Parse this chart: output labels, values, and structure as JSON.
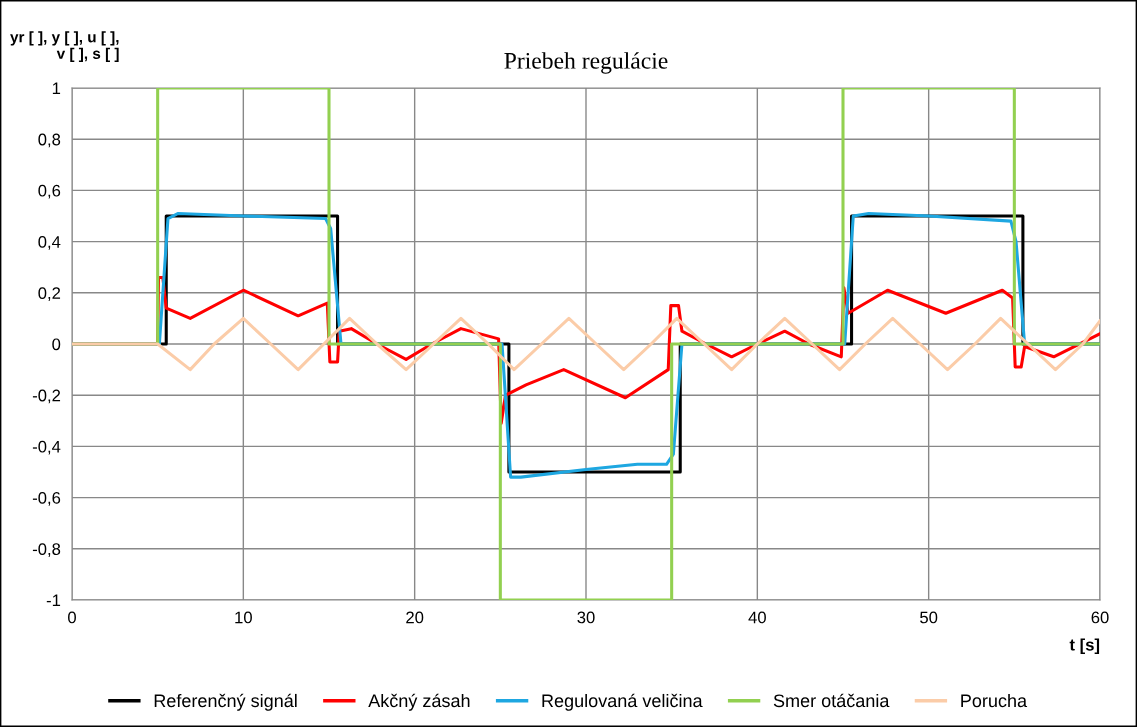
{
  "chart_data": {
    "type": "line",
    "title": "Priebeh regulácie",
    "xlabel": "t [s]",
    "ylabel": "yr [ ], y [ ], u [ ],\nv [ ], s [ ]",
    "xlim": [
      0,
      60
    ],
    "xticks": [
      0,
      10,
      20,
      30,
      40,
      50,
      60
    ],
    "ylim": [
      -1,
      1
    ],
    "yticks": [
      {
        "value": -1,
        "label": "-1"
      },
      {
        "value": -0.8,
        "label": "-0,8"
      },
      {
        "value": -0.6,
        "label": "-0,6"
      },
      {
        "value": -0.4,
        "label": "-0,4"
      },
      {
        "value": -0.2,
        "label": "-0,2"
      },
      {
        "value": 0,
        "label": "0"
      },
      {
        "value": 0.2,
        "label": "0,2"
      },
      {
        "value": 0.4,
        "label": "0,4"
      },
      {
        "value": 0.6,
        "label": "0,6"
      },
      {
        "value": 0.8,
        "label": "0,8"
      },
      {
        "value": 1,
        "label": "1"
      }
    ],
    "grid": true,
    "legend": "bottom",
    "line_style": "solid",
    "marker": "none",
    "series": [
      {
        "name": "Referenčný signál",
        "color": "#000000",
        "x": [
          0,
          5.5,
          5.5,
          15.5,
          15.5,
          25.5,
          25.5,
          35.5,
          35.5,
          45.5,
          45.5,
          55.5,
          55.5,
          60
        ],
        "values": [
          0,
          0,
          0.5,
          0.5,
          0,
          0,
          -0.5,
          -0.5,
          0,
          0,
          0.5,
          0.5,
          0,
          0
        ]
      },
      {
        "name": "Akčný zásah",
        "color": "#ff0000",
        "x": [
          0,
          5,
          5.05,
          5.3,
          5.5,
          6.9,
          10,
          13.2,
          14.9,
          15.05,
          15.5,
          15.6,
          16.3,
          17.8,
          19.5,
          21,
          22.7,
          24.9,
          25.05,
          25.3,
          26.5,
          28.7,
          32.3,
          34.8,
          34.95,
          35.4,
          35.6,
          37,
          38.5,
          40,
          41.6,
          43,
          44.9,
          45.05,
          45.3,
          47.6,
          51,
          54.3,
          54.9,
          55.05,
          55.4,
          55.6,
          57.3,
          60
        ],
        "values": [
          0,
          0,
          0.26,
          0.26,
          0.14,
          0.1,
          0.21,
          0.11,
          0.16,
          -0.07,
          -0.07,
          0.05,
          0.06,
          0,
          -0.06,
          0,
          0.06,
          0.02,
          -0.31,
          -0.2,
          -0.16,
          -0.1,
          -0.21,
          -0.1,
          0.15,
          0.15,
          0.05,
          0,
          -0.05,
          0,
          0.05,
          0,
          -0.05,
          0.22,
          0.12,
          0.21,
          0.12,
          0.21,
          0.18,
          -0.09,
          -0.09,
          -0.01,
          -0.05,
          0.04
        ]
      },
      {
        "name": "Regulovaná veličina",
        "color": "#1ea7e1",
        "x": [
          0,
          5.1,
          5.6,
          6.2,
          10,
          14.8,
          15.1,
          15.7,
          25.1,
          25.6,
          26.2,
          30,
          33,
          34.7,
          35.1,
          35.6,
          45.1,
          45.6,
          46.5,
          50,
          54.8,
          55.1,
          55.6,
          60
        ],
        "values": [
          0,
          0,
          0.49,
          0.51,
          0.5,
          0.49,
          0.45,
          0,
          0,
          -0.52,
          -0.52,
          -0.49,
          -0.47,
          -0.47,
          -0.43,
          0,
          0,
          0.5,
          0.51,
          0.5,
          0.48,
          0.4,
          0,
          0
        ]
      },
      {
        "name": "Smer otáčania",
        "color": "#92d050",
        "x": [
          0,
          5,
          5,
          15,
          15,
          25,
          25,
          35,
          35,
          45,
          45,
          55,
          55,
          60
        ],
        "values": [
          0,
          0,
          1,
          1,
          0,
          0,
          -1,
          -1,
          0,
          0,
          1,
          1,
          0,
          0
        ]
      },
      {
        "name": "Porucha",
        "color": "#fbcca8",
        "x": [
          0,
          5,
          6.9,
          8.3,
          10,
          11.6,
          13.2,
          14.7,
          16.2,
          17.8,
          19.5,
          21.1,
          22.7,
          24.3,
          25.8,
          27.4,
          29,
          30.6,
          32.2,
          33.8,
          35.3,
          36.9,
          38.5,
          40,
          41.6,
          43.2,
          44.8,
          46.3,
          47.9,
          49.5,
          51.1,
          52.7,
          54.2,
          55.8,
          57.4,
          59,
          60
        ],
        "values": [
          0,
          0,
          -0.1,
          0,
          0.1,
          0,
          -0.1,
          0,
          0.1,
          0,
          -0.1,
          0,
          0.1,
          0,
          -0.1,
          0,
          0.1,
          0,
          -0.1,
          0,
          0.1,
          0,
          -0.1,
          0,
          0.1,
          0,
          -0.1,
          0,
          0.1,
          0,
          -0.1,
          0,
          0.1,
          0,
          -0.1,
          0,
          0.09
        ]
      }
    ]
  }
}
